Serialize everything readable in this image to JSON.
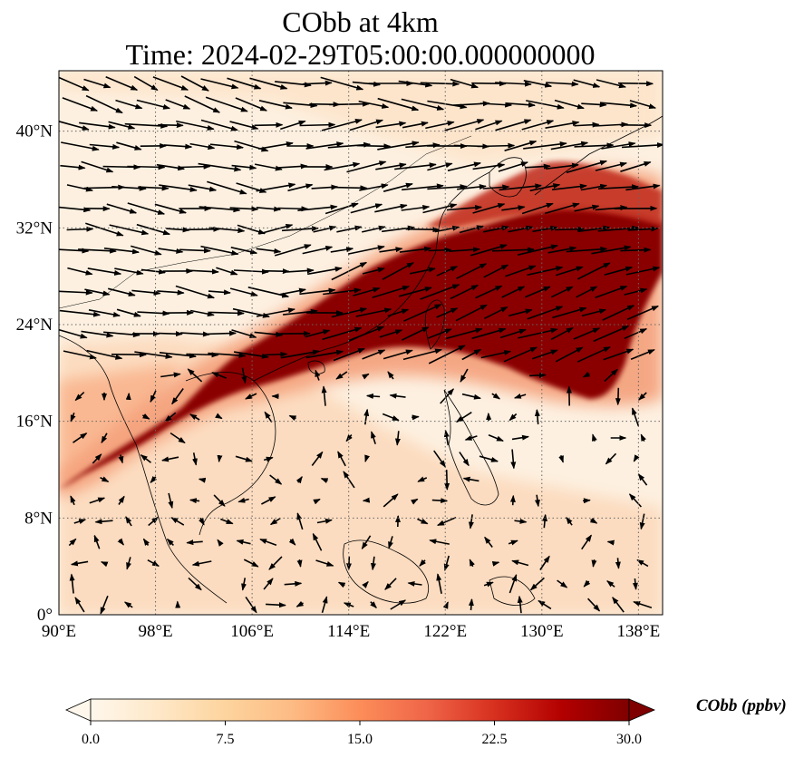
{
  "title": {
    "line1": "CObb at 4km",
    "line2": "Time: 2024-02-29T05:00:00.000000000"
  },
  "map": {
    "lon_range": [
      90,
      140
    ],
    "lat_range": [
      0,
      45
    ],
    "lon_ticks": [
      "90°E",
      "98°E",
      "106°E",
      "114°E",
      "122°E",
      "130°E",
      "138°E"
    ],
    "lat_ticks": [
      "0°",
      "8°N",
      "16°N",
      "24°N",
      "32°N",
      "40°N"
    ],
    "gridlines": true,
    "field": "CObb",
    "plume_color": "#7f0000",
    "background_color": "#fff5eb",
    "coastline_color": "#000000",
    "vector_color": "#000000"
  },
  "colorbar": {
    "label": "CObb (ppbv)",
    "min": 0.0,
    "max": 30.0,
    "ticks": [
      "0.0",
      "7.5",
      "15.0",
      "22.5",
      "30.0"
    ],
    "colormap": "OrRd",
    "colors": [
      "#fff7ec",
      "#fee8c8",
      "#fdd49e",
      "#fdbb84",
      "#fc8d59",
      "#ef6548",
      "#d7301f",
      "#b30000",
      "#7f0000"
    ],
    "extend": "both"
  }
}
